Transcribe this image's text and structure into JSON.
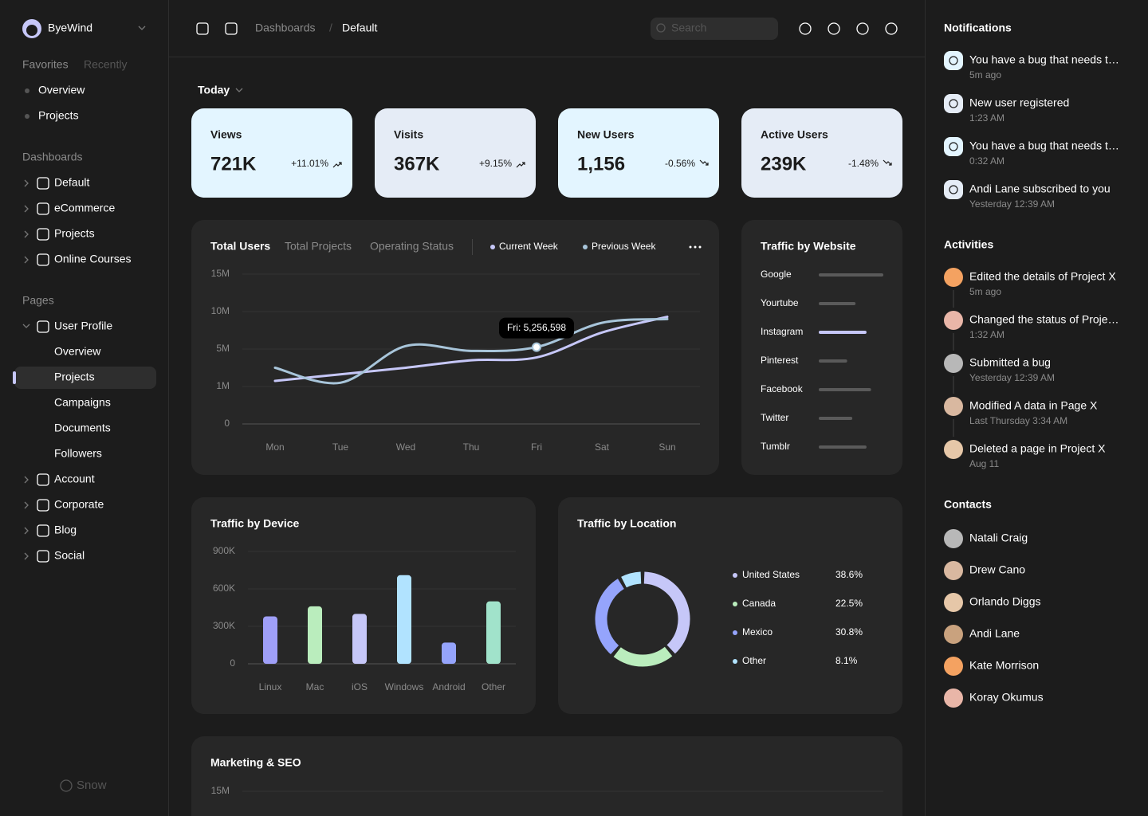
{
  "sidebar": {
    "brand": "ByeWind",
    "tabs": [
      "Favorites",
      "Recently"
    ],
    "favorites": [
      "Overview",
      "Projects"
    ],
    "dashboards_heading": "Dashboards",
    "dashboards": [
      "Default",
      "eCommerce",
      "Projects",
      "Online Courses"
    ],
    "pages_heading": "Pages",
    "user_profile": {
      "label": "User Profile",
      "children": [
        "Overview",
        "Projects",
        "Campaigns",
        "Documents",
        "Followers"
      ]
    },
    "pages": [
      "Account",
      "Corporate",
      "Blog",
      "Social"
    ],
    "footer": "Snow"
  },
  "topbar": {
    "breadcrumb": [
      "Dashboards",
      "Default"
    ],
    "separator": "/",
    "search": "Search"
  },
  "filter": "Today",
  "stats": [
    {
      "label": "Views",
      "value": "721K",
      "change": "+11.01%"
    },
    {
      "label": "Visits",
      "value": "367K",
      "change": "+9.15%"
    },
    {
      "label": "New Users",
      "value": "1,156",
      "change": "-0.56%"
    },
    {
      "label": "Active Users",
      "value": "239K",
      "change": "-1.48%"
    }
  ],
  "chart_data": [
    {
      "type": "line",
      "tabs": [
        "Total Users",
        "Total Projects",
        "Operating Status"
      ],
      "categories": [
        "Mon",
        "Tue",
        "Wed",
        "Thu",
        "Fri",
        "Sat",
        "Sun"
      ],
      "series": [
        {
          "name": "Current Week",
          "color": "#c6c7f8",
          "values": [
            1600000,
            2300000,
            3000000,
            3800000,
            4100000,
            7200000,
            9300000
          ]
        },
        {
          "name": "Previous Week",
          "color": "#a8c5da",
          "values": [
            3000000,
            1400000,
            5400000,
            4800000,
            5256598,
            8500000,
            9000000
          ]
        }
      ],
      "ylim": [
        0,
        15000000
      ],
      "yticks": [
        0,
        {
          "value": 1000000,
          "label": "1M"
        },
        {
          "value": 5000000,
          "label": "5M"
        },
        {
          "value": 10000000,
          "label": "10M"
        },
        {
          "value": 15000000,
          "label": "15M"
        }
      ],
      "annotation": "Fri: 5,256,598",
      "grid": true
    },
    {
      "type": "hbar",
      "title": "Traffic by Website",
      "categories": [
        "Google",
        "Yourtube",
        "Instagram",
        "Pinterest",
        "Facebook",
        "Twitter",
        "Tumblr"
      ],
      "values": [
        100,
        57,
        74,
        44,
        81,
        52,
        74
      ],
      "colors": [
        "#5a5a5a",
        "#5a5a5a",
        "#c6c7f8",
        "#5a5a5a",
        "#5a5a5a",
        "#5a5a5a",
        "#5a5a5a"
      ],
      "xlim": [
        0,
        100
      ]
    },
    {
      "type": "bar",
      "title": "Traffic by Device",
      "categories": [
        "Linux",
        "Mac",
        "iOS",
        "Windows",
        "Android",
        "Other"
      ],
      "values": [
        380000,
        460000,
        400000,
        710000,
        170000,
        500000
      ],
      "colors": [
        "#9f9ff8",
        "#baedbd",
        "#c6c7f8",
        "#b1e3ff",
        "#95a4fc",
        "#a1e3cb"
      ],
      "ylim": [
        0,
        900000
      ],
      "yticks": [
        0,
        {
          "value": 300000,
          "label": "300K"
        },
        {
          "value": 600000,
          "label": "600K"
        },
        {
          "value": 900000,
          "label": "900K"
        }
      ],
      "grid": true
    },
    {
      "type": "donut",
      "title": "Traffic by Location",
      "categories": [
        "United States",
        "Canada",
        "Mexico",
        "Other"
      ],
      "values": [
        38.6,
        22.5,
        30.8,
        8.1
      ],
      "value_labels": [
        "38.6%",
        "22.5%",
        "30.8%",
        "8.1%"
      ],
      "colors": [
        "#c6c7f8",
        "#baedbd",
        "#95a4fc",
        "#b1e3ff"
      ]
    },
    {
      "type": "bar",
      "title": "Marketing & SEO",
      "ylim": [
        0,
        15000000
      ],
      "yticks": [
        {
          "value": 15000000,
          "label": "15M"
        }
      ],
      "grid": true
    }
  ],
  "notifications": {
    "title": "Notifications",
    "items": [
      {
        "text": "You have a bug that needs t…",
        "time": "5m ago"
      },
      {
        "text": "New user registered",
        "time": "1:23 AM"
      },
      {
        "text": "You have a bug that needs t…",
        "time": "0:32 AM"
      },
      {
        "text": "Andi Lane subscribed to you",
        "time": "Yesterday 12:39 AM"
      }
    ]
  },
  "activities": {
    "title": "Activities",
    "items": [
      {
        "text": "Edited the details of Project X",
        "time": "5m ago"
      },
      {
        "text": "Changed the status of Proje…",
        "time": "1:32 AM"
      },
      {
        "text": "Submitted a bug",
        "time": "Yesterday 12:39 AM"
      },
      {
        "text": "Modified A data in Page X",
        "time": "Last Thursday 3:34 AM"
      },
      {
        "text": "Deleted a page in Project X",
        "time": "Aug 11"
      }
    ]
  },
  "contacts": {
    "title": "Contacts",
    "items": [
      "Natali Craig",
      "Drew Cano",
      "Orlando Diggs",
      "Andi Lane",
      "Kate Morrison",
      "Koray Okumus"
    ]
  }
}
